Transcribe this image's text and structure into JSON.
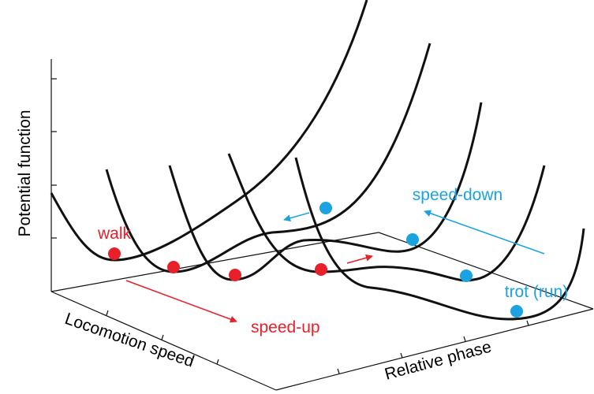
{
  "axes": {
    "z_label": "Potential function",
    "x_label": "Locomotion speed",
    "y_label": "Relative phase"
  },
  "labels": {
    "walk": "walk",
    "speed_up": "speed-up",
    "speed_down": "speed-down",
    "trot": "trot (run)"
  }
}
